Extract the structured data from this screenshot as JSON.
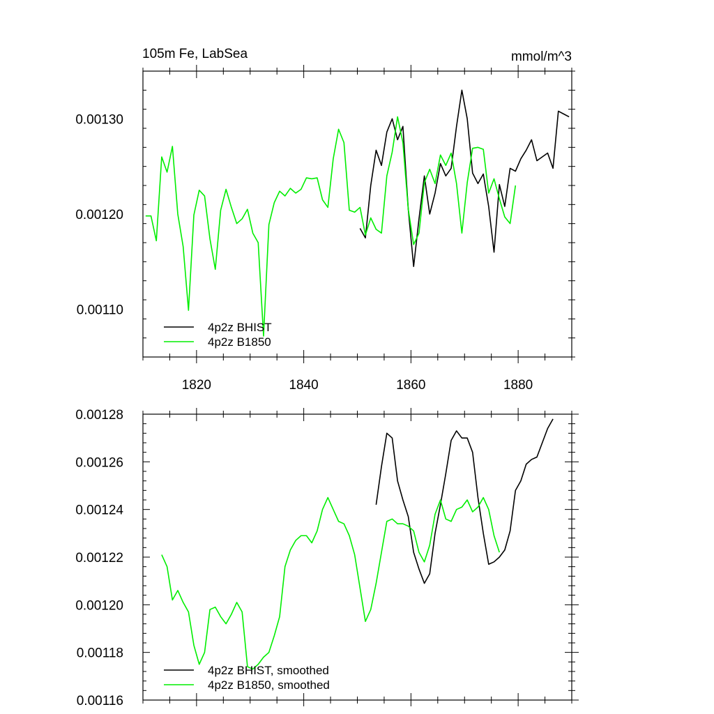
{
  "chart_data": [
    {
      "type": "line",
      "title": "105m Fe, LabSea",
      "units": "mmol/m^3",
      "xlim": [
        1810,
        1890
      ],
      "ylim": [
        0.00105,
        0.00135
      ],
      "xticks": [
        1820,
        1840,
        1860,
        1880
      ],
      "yticks": [
        0.0011,
        0.0012,
        0.0013
      ],
      "ytick_labels": [
        "0.00110",
        "0.00120",
        "0.00130"
      ],
      "legend_position": "bottom-left",
      "series": [
        {
          "name": "4p2z BHIST",
          "color": "#000000",
          "x": [
            1850.5,
            1851.5,
            1852.5,
            1853.5,
            1854.5,
            1855.5,
            1856.5,
            1857.5,
            1858.5,
            1859.5,
            1860.5,
            1861.5,
            1862.5,
            1863.5,
            1864.5,
            1865.5,
            1866.5,
            1867.5,
            1868.5,
            1869.5,
            1870.5,
            1871.5,
            1872.5,
            1873.5,
            1874.5,
            1875.5,
            1876.5,
            1877.5,
            1878.5,
            1879.5,
            1880.5,
            1881.5,
            1882.5,
            1883.5,
            1884.5,
            1885.5,
            1886.5,
            1887.5,
            1888.5,
            1889.5
          ],
          "y": [
            0.001185,
            0.001175,
            0.00123,
            0.001267,
            0.001251,
            0.001286,
            0.0013,
            0.001278,
            0.001292,
            0.001205,
            0.001145,
            0.001195,
            0.00124,
            0.0012,
            0.001222,
            0.001253,
            0.00124,
            0.001248,
            0.001292,
            0.00133,
            0.0013,
            0.001243,
            0.001232,
            0.001242,
            0.001208,
            0.00116,
            0.001231,
            0.001208,
            0.001248,
            0.001245,
            0.001258,
            0.001267,
            0.001278,
            0.001256,
            0.00126,
            0.001264,
            0.001248,
            0.001308,
            0.001305,
            0.001302
          ]
        },
        {
          "name": "4p2z B1850",
          "color": "#00ee00",
          "x": [
            1810.5,
            1811.5,
            1812.5,
            1813.5,
            1814.5,
            1815.5,
            1816.5,
            1817.5,
            1818.5,
            1819.5,
            1820.5,
            1821.5,
            1822.5,
            1823.5,
            1824.5,
            1825.5,
            1826.5,
            1827.5,
            1828.5,
            1829.5,
            1830.5,
            1831.5,
            1832.5,
            1833.5,
            1834.5,
            1835.5,
            1836.5,
            1837.5,
            1838.5,
            1839.5,
            1840.5,
            1841.5,
            1842.5,
            1843.5,
            1844.5,
            1845.5,
            1846.5,
            1847.5,
            1848.5,
            1849.5,
            1850.5,
            1851.5,
            1852.5,
            1853.5,
            1854.5,
            1855.5,
            1856.5,
            1857.5,
            1858.5,
            1859.5,
            1860.5,
            1861.5,
            1862.5,
            1863.5,
            1864.5,
            1865.5,
            1866.5,
            1867.5,
            1868.5,
            1869.5,
            1870.5,
            1871.5,
            1872.5,
            1873.5,
            1874.5,
            1875.5,
            1876.5,
            1877.5,
            1878.5,
            1879.5
          ],
          "y": [
            0.001198,
            0.001198,
            0.001172,
            0.00126,
            0.001244,
            0.001271,
            0.0012,
            0.001166,
            0.001099,
            0.001199,
            0.001225,
            0.001219,
            0.001174,
            0.001142,
            0.001204,
            0.001226,
            0.001207,
            0.00119,
            0.001195,
            0.001205,
            0.00118,
            0.00117,
            0.001072,
            0.001189,
            0.001212,
            0.001224,
            0.001219,
            0.001227,
            0.001222,
            0.001226,
            0.001238,
            0.001237,
            0.001238,
            0.001215,
            0.001207,
            0.001258,
            0.001289,
            0.001275,
            0.001204,
            0.001202,
            0.001207,
            0.001178,
            0.001196,
            0.001184,
            0.00118,
            0.00124,
            0.001265,
            0.001302,
            0.001275,
            0.001205,
            0.001168,
            0.00118,
            0.001233,
            0.001247,
            0.001232,
            0.001262,
            0.001251,
            0.001264,
            0.001232,
            0.00118,
            0.001233,
            0.001269,
            0.00127,
            0.001268,
            0.001222,
            0.001237,
            0.001216,
            0.001197,
            0.00119,
            0.00123
          ]
        }
      ]
    },
    {
      "type": "line",
      "xlim": [
        1810,
        1890
      ],
      "ylim": [
        0.00116,
        0.00128
      ],
      "xticks": [
        1820,
        1840,
        1860,
        1880
      ],
      "yticks": [
        0.00116,
        0.00118,
        0.0012,
        0.00122,
        0.00124,
        0.00126,
        0.00128
      ],
      "ytick_labels": [
        "0.00116",
        "0.00118",
        "0.00120",
        "0.00122",
        "0.00124",
        "0.00126",
        "0.00128"
      ],
      "legend_position": "bottom-left",
      "series": [
        {
          "name": "4p2z BHIST, smoothed",
          "color": "#000000",
          "x": [
            1853.5,
            1854.5,
            1855.5,
            1856.5,
            1857.5,
            1858.5,
            1859.5,
            1860.5,
            1861.5,
            1862.5,
            1863.5,
            1864.5,
            1865.5,
            1866.5,
            1867.5,
            1868.5,
            1869.5,
            1870.5,
            1871.5,
            1872.5,
            1873.5,
            1874.5,
            1875.5,
            1876.5,
            1877.5,
            1878.5,
            1879.5,
            1880.5,
            1881.5,
            1882.5,
            1883.5,
            1884.5,
            1885.5,
            1886.5
          ],
          "y": [
            0.001242,
            0.001258,
            0.001272,
            0.00127,
            0.001252,
            0.001244,
            0.001237,
            0.001222,
            0.001215,
            0.001209,
            0.001213,
            0.00123,
            0.001242,
            0.001255,
            0.001269,
            0.001273,
            0.00127,
            0.00127,
            0.001264,
            0.001245,
            0.00123,
            0.001217,
            0.001218,
            0.00122,
            0.001223,
            0.001231,
            0.001248,
            0.001252,
            0.001259,
            0.001261,
            0.001262,
            0.001268,
            0.001274,
            0.001278
          ]
        },
        {
          "name": "4p2z B1850, smoothed",
          "color": "#00ee00",
          "x": [
            1813.5,
            1814.5,
            1815.5,
            1816.5,
            1817.5,
            1818.5,
            1819.5,
            1820.5,
            1821.5,
            1822.5,
            1823.5,
            1824.5,
            1825.5,
            1826.5,
            1827.5,
            1828.5,
            1829.5,
            1830.5,
            1831.5,
            1832.5,
            1833.5,
            1834.5,
            1835.5,
            1836.5,
            1837.5,
            1838.5,
            1839.5,
            1840.5,
            1841.5,
            1842.5,
            1843.5,
            1844.5,
            1845.5,
            1846.5,
            1847.5,
            1848.5,
            1849.5,
            1850.5,
            1851.5,
            1852.5,
            1853.5,
            1854.5,
            1855.5,
            1856.5,
            1857.5,
            1858.5,
            1859.5,
            1860.5,
            1861.5,
            1862.5,
            1863.5,
            1864.5,
            1865.5,
            1866.5,
            1867.5,
            1868.5,
            1869.5,
            1870.5,
            1871.5,
            1872.5,
            1873.5,
            1874.5,
            1875.5,
            1876.5
          ],
          "y": [
            0.001221,
            0.001216,
            0.001202,
            0.001206,
            0.001201,
            0.001197,
            0.001183,
            0.001175,
            0.00118,
            0.001198,
            0.001199,
            0.001195,
            0.001192,
            0.001196,
            0.001201,
            0.001197,
            0.001174,
            0.001173,
            0.001175,
            0.001178,
            0.00118,
            0.001187,
            0.001195,
            0.001216,
            0.001223,
            0.001227,
            0.001229,
            0.001229,
            0.001226,
            0.001231,
            0.00124,
            0.001245,
            0.00124,
            0.001235,
            0.001234,
            0.001229,
            0.001221,
            0.001207,
            0.001193,
            0.001198,
            0.001209,
            0.001222,
            0.001235,
            0.001236,
            0.001234,
            0.001234,
            0.001233,
            0.001231,
            0.001222,
            0.001218,
            0.001225,
            0.001238,
            0.001244,
            0.001236,
            0.001235,
            0.00124,
            0.001241,
            0.001244,
            0.001239,
            0.001241,
            0.001245,
            0.00124,
            0.001229,
            0.001222
          ]
        }
      ]
    }
  ]
}
